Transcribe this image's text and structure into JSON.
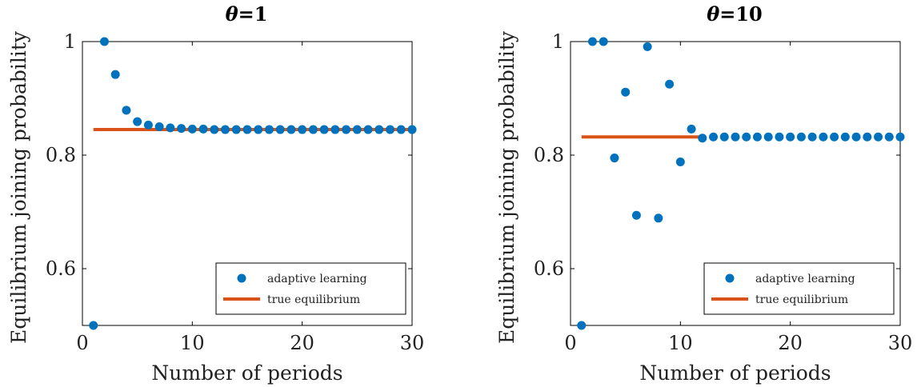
{
  "chart_data": [
    {
      "type": "scatter",
      "title": "θ=1",
      "title_symbol": "θ",
      "title_rest": "=1",
      "xlabel": "Number of periods",
      "ylabel": "Equilibrium joining probability",
      "xlim": [
        0,
        30
      ],
      "ylim": [
        0.5,
        1.0
      ],
      "xticks": [
        0,
        10,
        20,
        30
      ],
      "yticks": [
        0.6,
        0.8,
        1
      ],
      "yticklabels": [
        "0.6",
        "0.8",
        "1"
      ],
      "legend_position": "bottom-right",
      "series": [
        {
          "name": "adaptive learning",
          "kind": "points",
          "color": "#0072BD",
          "x": [
            1,
            2,
            3,
            4,
            5,
            6,
            7,
            8,
            9,
            10,
            11,
            12,
            13,
            14,
            15,
            16,
            17,
            18,
            19,
            20,
            21,
            22,
            23,
            24,
            25,
            26,
            27,
            28,
            29,
            30
          ],
          "y": [
            0.5,
            1.0,
            0.942,
            0.879,
            0.859,
            0.853,
            0.85,
            0.848,
            0.847,
            0.846,
            0.846,
            0.845,
            0.845,
            0.845,
            0.845,
            0.845,
            0.845,
            0.845,
            0.845,
            0.845,
            0.845,
            0.845,
            0.845,
            0.845,
            0.845,
            0.845,
            0.845,
            0.845,
            0.845,
            0.845
          ]
        },
        {
          "name": "true equilibrium",
          "kind": "line",
          "color": "#D95319",
          "x": [
            1,
            30
          ],
          "y": [
            0.845,
            0.845
          ]
        }
      ]
    },
    {
      "type": "scatter",
      "title": "θ=10",
      "title_symbol": "θ",
      "title_rest": "=10",
      "xlabel": "Number of periods",
      "ylabel": "Equilibrium joining probability",
      "xlim": [
        0,
        30
      ],
      "ylim": [
        0.5,
        1.0
      ],
      "xticks": [
        0,
        10,
        20,
        30
      ],
      "yticks": [
        0.6,
        0.8,
        1
      ],
      "yticklabels": [
        "0.6",
        "0.8",
        "1"
      ],
      "legend_position": "bottom-right",
      "series": [
        {
          "name": "adaptive learning",
          "kind": "points",
          "color": "#0072BD",
          "x": [
            1,
            2,
            3,
            4,
            5,
            6,
            7,
            8,
            9,
            10,
            11,
            12,
            13,
            14,
            15,
            16,
            17,
            18,
            19,
            20,
            21,
            22,
            23,
            24,
            25,
            26,
            27,
            28,
            29,
            30
          ],
          "y": [
            0.5,
            1.0,
            1.0,
            0.795,
            0.911,
            0.694,
            0.991,
            0.689,
            0.925,
            0.788,
            0.846,
            0.83,
            0.832,
            0.832,
            0.832,
            0.832,
            0.832,
            0.832,
            0.832,
            0.832,
            0.832,
            0.832,
            0.832,
            0.832,
            0.832,
            0.832,
            0.832,
            0.832,
            0.832,
            0.832
          ]
        },
        {
          "name": "true equilibrium",
          "kind": "line",
          "color": "#D95319",
          "x": [
            1,
            12
          ],
          "y": [
            0.832,
            0.832
          ]
        }
      ]
    }
  ]
}
